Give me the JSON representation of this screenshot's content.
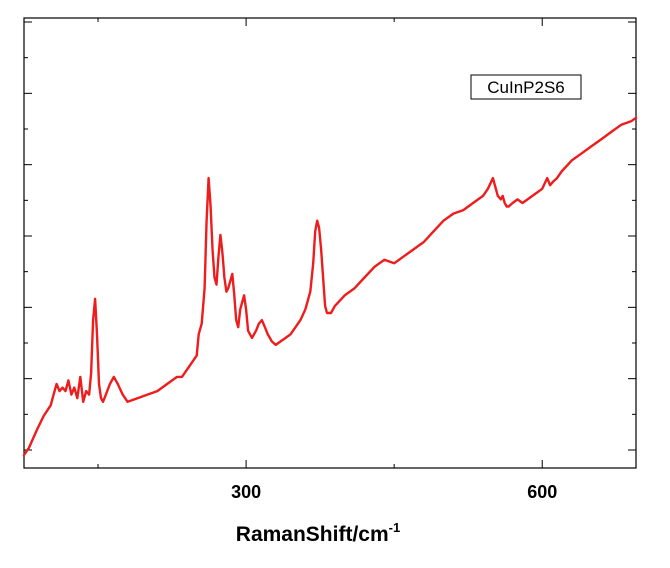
{
  "chart_data": {
    "type": "line",
    "title": "",
    "xlabel": "RamanShift/cm",
    "xlabel_superscript": "-1",
    "ylabel": "",
    "xlim": [
      75,
      695
    ],
    "ylim": [
      0,
      100
    ],
    "xticks": [
      300,
      600
    ],
    "xtick_labels": [
      "300",
      "600"
    ],
    "y_tick_labels_shown": false,
    "grid": false,
    "legend_placement": "top-right",
    "line_color": "#ee1c1c",
    "series": [
      {
        "name": "CuInP2S6",
        "x": [
          75,
          80,
          88,
          95,
          102,
          105,
          108,
          111,
          114,
          117,
          120,
          123,
          126,
          129,
          132,
          135,
          138,
          141,
          143,
          145,
          147,
          149,
          151,
          153,
          155,
          158,
          162,
          166,
          170,
          175,
          180,
          190,
          200,
          210,
          220,
          230,
          235,
          240,
          245,
          250,
          252,
          255,
          258,
          260,
          262,
          264,
          266,
          268,
          270,
          272,
          274,
          276,
          278,
          280,
          282,
          284,
          286,
          288,
          290,
          292,
          294,
          296,
          298,
          300,
          302,
          304,
          306,
          308,
          310,
          313,
          316,
          319,
          322,
          326,
          330,
          335,
          340,
          345,
          350,
          355,
          360,
          365,
          368,
          370,
          372,
          374,
          376,
          378,
          380,
          382,
          384,
          386,
          390,
          400,
          410,
          420,
          430,
          440,
          450,
          460,
          470,
          480,
          490,
          500,
          510,
          520,
          530,
          540,
          545,
          550,
          555,
          558,
          560,
          562,
          564,
          566,
          570,
          575,
          580,
          590,
          600,
          605,
          608,
          611,
          615,
          620,
          630,
          640,
          650,
          660,
          670,
          680,
          690,
          695
        ],
        "values": [
          0,
          2,
          7,
          11,
          14,
          17,
          20,
          18,
          19,
          18,
          21,
          17,
          19,
          16,
          22,
          15,
          18,
          17,
          23,
          38,
          44,
          34,
          20,
          16,
          15,
          17,
          20,
          22,
          20,
          17,
          15,
          16,
          17,
          18,
          20,
          22,
          22,
          24,
          26,
          28,
          34,
          37,
          47,
          66,
          78,
          70,
          58,
          50,
          48,
          56,
          62,
          57,
          50,
          46,
          47,
          49,
          51,
          45,
          38,
          36,
          41,
          43,
          45,
          41,
          35,
          34,
          33,
          34,
          35,
          37,
          38,
          36,
          34,
          32,
          31,
          32,
          33,
          34,
          36,
          38,
          41,
          46,
          54,
          63,
          66,
          64,
          58,
          50,
          42,
          40,
          40,
          40,
          42,
          45,
          47,
          50,
          53,
          55,
          54,
          56,
          58,
          60,
          63,
          66,
          68,
          69,
          71,
          73,
          75,
          78,
          73,
          72,
          73,
          71,
          70,
          70,
          71,
          72,
          71,
          73,
          75,
          78,
          76,
          77,
          78,
          80,
          83,
          85,
          87,
          89,
          91,
          93,
          94,
          95
        ]
      }
    ]
  }
}
